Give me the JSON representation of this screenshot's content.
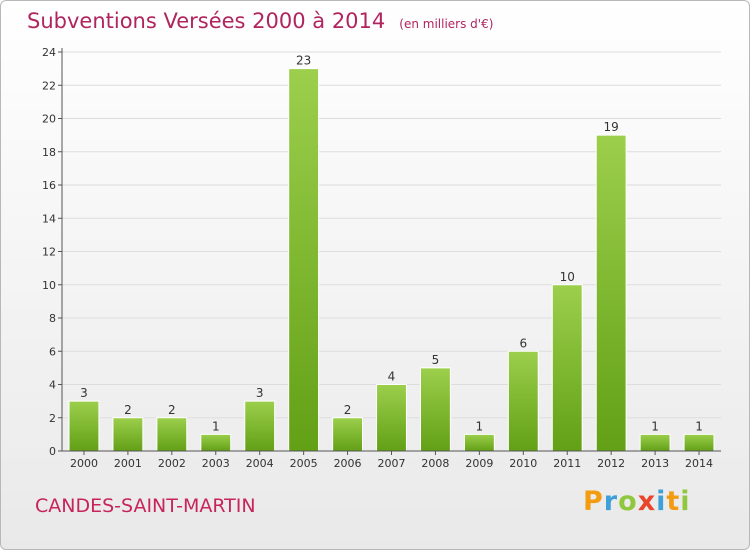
{
  "title": "Subventions Versées 2000 à 2014",
  "subtitle": "(en milliers d'€)",
  "place": "CANDES-SAINT-MARTIN",
  "logo": {
    "letters": [
      "P",
      "r",
      "o",
      "x",
      "i",
      "t",
      "i"
    ],
    "colors": [
      "#f39c12",
      "#3ea0d8",
      "#8fc73e",
      "#e8452c",
      "#3ea0d8",
      "#f39c12",
      "#8fc73e"
    ]
  },
  "colors": {
    "title": "#b0245f",
    "bar_light": "#9ccf4c",
    "bar_dark": "#62a016",
    "grid": "#dddddd",
    "axis": "#555555"
  },
  "chart_data": {
    "type": "bar",
    "categories": [
      "2000",
      "2001",
      "2002",
      "2003",
      "2004",
      "2005",
      "2006",
      "2007",
      "2008",
      "2009",
      "2010",
      "2011",
      "2012",
      "2013",
      "2014"
    ],
    "values": [
      3,
      2,
      2,
      1,
      3,
      23,
      2,
      4,
      5,
      1,
      6,
      10,
      19,
      1,
      1
    ],
    "title": "Subventions Versées 2000 à 2014",
    "ylim": [
      0,
      24
    ],
    "yticks": [
      0,
      2,
      4,
      6,
      8,
      10,
      12,
      14,
      16,
      18,
      20,
      22,
      24
    ],
    "grid": true,
    "data_labels": true
  }
}
